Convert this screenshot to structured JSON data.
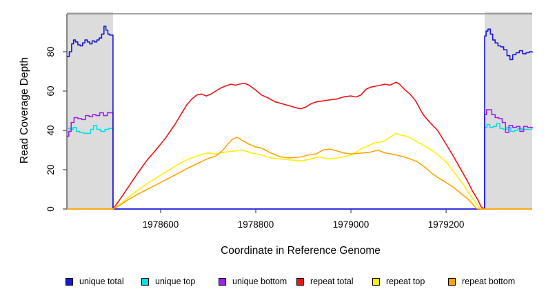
{
  "figure": {
    "xlabel": "Coordinate in Reference Genome",
    "ylabel": "Read Coverage Depth"
  },
  "legend": {
    "items": [
      {
        "label": "unique total",
        "color": "#1717d6"
      },
      {
        "label": "unique top",
        "color": "#00e0e8"
      },
      {
        "label": "unique bottom",
        "color": "#a020f0"
      },
      {
        "label": "repeat total",
        "color": "#ee1111"
      },
      {
        "label": "repeat top",
        "color": "#fff000"
      },
      {
        "label": "repeat bottom",
        "color": "#ffa500"
      }
    ]
  },
  "chart_data": {
    "type": "line",
    "title": "",
    "xlabel": "Coordinate in Reference Genome",
    "ylabel": "Read Coverage Depth",
    "xlim": [
      1978403,
      1979381
    ],
    "ylim": [
      0,
      99.3
    ],
    "x_ticks": [
      1978600,
      1978800,
      1979000,
      1979200
    ],
    "y_ticks": [
      0,
      20,
      40,
      60,
      80
    ],
    "grid": false,
    "legend_position": "bottom",
    "background": "#ffffff",
    "shaded_regions": [
      {
        "x0": 1978403,
        "x1": 1978500,
        "color": "#dcdcdc"
      },
      {
        "x0": 1979281,
        "x1": 1979381,
        "color": "#dcdcdc"
      }
    ],
    "series": [
      {
        "name": "unique total",
        "color": "#1717d6",
        "step": true,
        "points": [
          [
            1978403,
            77.5
          ],
          [
            1978408,
            80
          ],
          [
            1978413,
            84
          ],
          [
            1978417,
            86
          ],
          [
            1978421,
            85
          ],
          [
            1978426,
            83.5
          ],
          [
            1978431,
            83
          ],
          [
            1978436,
            84.5
          ],
          [
            1978441,
            86
          ],
          [
            1978446,
            85
          ],
          [
            1978451,
            84
          ],
          [
            1978456,
            85.5
          ],
          [
            1978461,
            85
          ],
          [
            1978466,
            86
          ],
          [
            1978471,
            87
          ],
          [
            1978476,
            89
          ],
          [
            1978481,
            93
          ],
          [
            1978485,
            91
          ],
          [
            1978489,
            89
          ],
          [
            1978493,
            88.5
          ],
          [
            1978500,
            87.5
          ],
          [
            1978500,
            0
          ],
          [
            1979281,
            0
          ],
          [
            1979281,
            88
          ],
          [
            1979284,
            90.5
          ],
          [
            1979288,
            91.5
          ],
          [
            1979293,
            89
          ],
          [
            1979298,
            86
          ],
          [
            1979303,
            84.5
          ],
          [
            1979309,
            83
          ],
          [
            1979315,
            82.5
          ],
          [
            1979321,
            81
          ],
          [
            1979328,
            78
          ],
          [
            1979334,
            76
          ],
          [
            1979340,
            78.5
          ],
          [
            1979347,
            79.5
          ],
          [
            1979354,
            80.5
          ],
          [
            1979361,
            79
          ],
          [
            1979368,
            79.5
          ],
          [
            1979375,
            80
          ],
          [
            1979381,
            79.5
          ]
        ]
      },
      {
        "name": "unique top",
        "color": "#00e0e8",
        "step": true,
        "points": [
          [
            1978403,
            41
          ],
          [
            1978410,
            40.5
          ],
          [
            1978416,
            41.5
          ],
          [
            1978423,
            39.5
          ],
          [
            1978430,
            39
          ],
          [
            1978438,
            38.5
          ],
          [
            1978446,
            38.5
          ],
          [
            1978453,
            40.5
          ],
          [
            1978459,
            42.5
          ],
          [
            1978466,
            40.5
          ],
          [
            1978474,
            39.5
          ],
          [
            1978483,
            40.5
          ],
          [
            1978491,
            41
          ],
          [
            1978500,
            40.5
          ],
          [
            1978500,
            0
          ],
          [
            1979281,
            0
          ],
          [
            1979281,
            41.5
          ],
          [
            1979286,
            43
          ],
          [
            1979292,
            41.5
          ],
          [
            1979299,
            42
          ],
          [
            1979306,
            43.5
          ],
          [
            1979313,
            41
          ],
          [
            1979320,
            40.5
          ],
          [
            1979328,
            41.5
          ],
          [
            1979336,
            39.5
          ],
          [
            1979344,
            40
          ],
          [
            1979351,
            41
          ],
          [
            1979359,
            40.5
          ],
          [
            1979368,
            40.5
          ],
          [
            1979381,
            40.5
          ]
        ]
      },
      {
        "name": "unique bottom",
        "color": "#a020f0",
        "step": true,
        "points": [
          [
            1978403,
            37
          ],
          [
            1978407,
            39.5
          ],
          [
            1978412,
            44
          ],
          [
            1978418,
            46.5
          ],
          [
            1978426,
            46
          ],
          [
            1978434,
            45.5
          ],
          [
            1978442,
            47.5
          ],
          [
            1978450,
            47
          ],
          [
            1978457,
            48
          ],
          [
            1978464,
            47.5
          ],
          [
            1978472,
            49
          ],
          [
            1978480,
            47.5
          ],
          [
            1978488,
            49
          ],
          [
            1978500,
            48.5
          ],
          [
            1978500,
            0
          ],
          [
            1979281,
            0
          ],
          [
            1979281,
            48
          ],
          [
            1979285,
            50.5
          ],
          [
            1979290,
            50.5
          ],
          [
            1979296,
            48
          ],
          [
            1979303,
            46.5
          ],
          [
            1979311,
            46
          ],
          [
            1979318,
            44
          ],
          [
            1979325,
            39
          ],
          [
            1979332,
            42.5
          ],
          [
            1979340,
            41.5
          ],
          [
            1979348,
            42
          ],
          [
            1979355,
            39.5
          ],
          [
            1979363,
            42
          ],
          [
            1979371,
            41.5
          ],
          [
            1979381,
            41
          ]
        ]
      },
      {
        "name": "repeat total",
        "color": "#ee1111",
        "step": false,
        "points": [
          [
            1978403,
            0
          ],
          [
            1978500,
            0
          ],
          [
            1978512,
            4
          ],
          [
            1978526,
            9
          ],
          [
            1978540,
            14
          ],
          [
            1978554,
            19
          ],
          [
            1978572,
            25
          ],
          [
            1978590,
            30
          ],
          [
            1978610,
            36
          ],
          [
            1978630,
            43
          ],
          [
            1978645,
            49
          ],
          [
            1978655,
            53
          ],
          [
            1978666,
            56
          ],
          [
            1978676,
            58
          ],
          [
            1978686,
            58.5
          ],
          [
            1978696,
            57.5
          ],
          [
            1978706,
            58.5
          ],
          [
            1978716,
            60
          ],
          [
            1978726,
            61.5
          ],
          [
            1978736,
            62.5
          ],
          [
            1978748,
            63.5
          ],
          [
            1978757,
            63
          ],
          [
            1978766,
            63.5
          ],
          [
            1978776,
            64
          ],
          [
            1978786,
            63
          ],
          [
            1978800,
            60.5
          ],
          [
            1978812,
            58
          ],
          [
            1978826,
            56.5
          ],
          [
            1978841,
            54.5
          ],
          [
            1978856,
            53.5
          ],
          [
            1978871,
            52.5
          ],
          [
            1978884,
            51.5
          ],
          [
            1978895,
            51
          ],
          [
            1978906,
            52
          ],
          [
            1978916,
            53.5
          ],
          [
            1978927,
            54.5
          ],
          [
            1978941,
            55
          ],
          [
            1978956,
            55.5
          ],
          [
            1978971,
            56
          ],
          [
            1978984,
            57
          ],
          [
            1979000,
            57.5
          ],
          [
            1979011,
            57
          ],
          [
            1979021,
            58
          ],
          [
            1979032,
            61
          ],
          [
            1979042,
            62
          ],
          [
            1979052,
            62.5
          ],
          [
            1979062,
            63
          ],
          [
            1979072,
            63.5
          ],
          [
            1979082,
            63
          ],
          [
            1979095,
            64.5
          ],
          [
            1979102,
            63.5
          ],
          [
            1979112,
            61
          ],
          [
            1979124,
            58.5
          ],
          [
            1979136,
            55
          ],
          [
            1979152,
            48
          ],
          [
            1979166,
            44
          ],
          [
            1979182,
            40
          ],
          [
            1979200,
            33
          ],
          [
            1979215,
            27
          ],
          [
            1979229,
            21
          ],
          [
            1979243,
            15
          ],
          [
            1979256,
            9
          ],
          [
            1979266,
            5
          ],
          [
            1979274,
            1
          ],
          [
            1979281,
            0
          ],
          [
            1979381,
            0
          ]
        ]
      },
      {
        "name": "repeat top",
        "color": "#fff000",
        "step": false,
        "points": [
          [
            1978403,
            0
          ],
          [
            1978500,
            0
          ],
          [
            1978515,
            2.5
          ],
          [
            1978530,
            5.5
          ],
          [
            1978552,
            9.5
          ],
          [
            1978572,
            13
          ],
          [
            1978592,
            16
          ],
          [
            1978612,
            19
          ],
          [
            1978632,
            22
          ],
          [
            1978655,
            25
          ],
          [
            1978676,
            27
          ],
          [
            1978698,
            28.5
          ],
          [
            1978716,
            28
          ],
          [
            1978736,
            29
          ],
          [
            1978756,
            29.5
          ],
          [
            1978772,
            30
          ],
          [
            1978792,
            28.5
          ],
          [
            1978812,
            27.5
          ],
          [
            1978832,
            26
          ],
          [
            1978852,
            25.5
          ],
          [
            1978872,
            25
          ],
          [
            1978898,
            24.5
          ],
          [
            1978916,
            25.5
          ],
          [
            1978932,
            26.5
          ],
          [
            1978952,
            25.5
          ],
          [
            1978972,
            26
          ],
          [
            1978985,
            26.5
          ],
          [
            1979000,
            27.5
          ],
          [
            1979012,
            29
          ],
          [
            1979024,
            31
          ],
          [
            1979036,
            32
          ],
          [
            1979048,
            33.5
          ],
          [
            1979060,
            34
          ],
          [
            1979070,
            34.5
          ],
          [
            1979082,
            36.5
          ],
          [
            1979095,
            38.5
          ],
          [
            1979105,
            37.5
          ],
          [
            1979118,
            37
          ],
          [
            1979134,
            35
          ],
          [
            1979152,
            32.5
          ],
          [
            1979170,
            30
          ],
          [
            1979186,
            27
          ],
          [
            1979200,
            24
          ],
          [
            1979216,
            19
          ],
          [
            1979232,
            14
          ],
          [
            1979248,
            8
          ],
          [
            1979260,
            4
          ],
          [
            1979270,
            0.5
          ],
          [
            1979274,
            0
          ],
          [
            1979281,
            0
          ],
          [
            1979381,
            0
          ]
        ]
      },
      {
        "name": "repeat bottom",
        "color": "#ffa500",
        "step": false,
        "points": [
          [
            1978403,
            0
          ],
          [
            1978500,
            0
          ],
          [
            1978515,
            2
          ],
          [
            1978530,
            4.5
          ],
          [
            1978552,
            7.5
          ],
          [
            1978572,
            10
          ],
          [
            1978592,
            12.5
          ],
          [
            1978612,
            15
          ],
          [
            1978632,
            17.5
          ],
          [
            1978655,
            20.5
          ],
          [
            1978676,
            23
          ],
          [
            1978698,
            25.5
          ],
          [
            1978716,
            27
          ],
          [
            1978731,
            30
          ],
          [
            1978741,
            33
          ],
          [
            1978751,
            35.5
          ],
          [
            1978761,
            36.5
          ],
          [
            1978771,
            35
          ],
          [
            1978786,
            33
          ],
          [
            1978800,
            31.5
          ],
          [
            1978812,
            31
          ],
          [
            1978832,
            28.5
          ],
          [
            1978852,
            26.5
          ],
          [
            1978872,
            26
          ],
          [
            1978895,
            26.5
          ],
          [
            1978911,
            27.5
          ],
          [
            1978927,
            28
          ],
          [
            1978941,
            30
          ],
          [
            1978956,
            30.5
          ],
          [
            1978971,
            29.5
          ],
          [
            1978985,
            28.5
          ],
          [
            1979000,
            28
          ],
          [
            1979024,
            28.5
          ],
          [
            1979042,
            29
          ],
          [
            1979057,
            30
          ],
          [
            1979072,
            28.5
          ],
          [
            1979095,
            27.5
          ],
          [
            1979112,
            26.5
          ],
          [
            1979124,
            25.5
          ],
          [
            1979140,
            24
          ],
          [
            1979157,
            21
          ],
          [
            1979171,
            18
          ],
          [
            1979186,
            15.5
          ],
          [
            1979200,
            13.5
          ],
          [
            1979216,
            11
          ],
          [
            1979231,
            8
          ],
          [
            1979246,
            5
          ],
          [
            1979256,
            2.5
          ],
          [
            1979263,
            0.5
          ],
          [
            1979268,
            0
          ],
          [
            1979281,
            0
          ],
          [
            1979381,
            0
          ]
        ]
      }
    ]
  }
}
